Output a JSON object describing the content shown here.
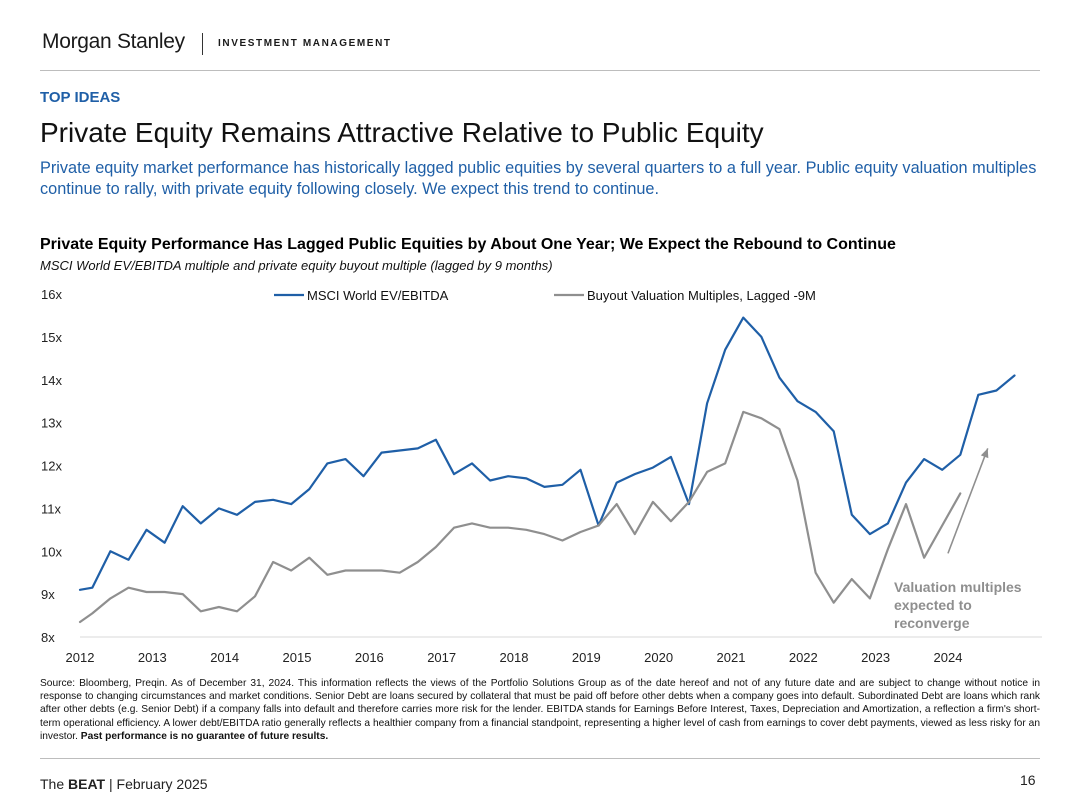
{
  "header": {
    "logo": "Morgan Stanley",
    "division": "INVESTMENT MANAGEMENT"
  },
  "section_label": "TOP IDEAS",
  "page_title": "Private Equity Remains Attractive Relative to Public Equity",
  "subtitle": "Private equity market performance has historically lagged public equities by several quarters to a full year. Public equity valuation multiples continue to rally, with private equity following closely. We expect this trend to continue.",
  "chart_data": {
    "type": "line",
    "title": "Private Equity Performance Has Lagged Public Equities by About One Year; We Expect the Rebound to Continue",
    "subtitle": "MSCI World EV/EBITDA multiple and private equity buyout multiple (lagged by 9 months)",
    "xlim": [
      2012,
      2025.3
    ],
    "ylim": [
      8,
      16
    ],
    "x_ticks": [
      2012,
      2013,
      2014,
      2015,
      2016,
      2017,
      2018,
      2019,
      2020,
      2021,
      2022,
      2023,
      2024
    ],
    "x_tick_labels": [
      "2012",
      "2013",
      "2014",
      "2015",
      "2016",
      "2017",
      "2018",
      "2019",
      "2020",
      "2021",
      "2022",
      "2023",
      "2024"
    ],
    "y_ticks": [
      8,
      9,
      10,
      11,
      12,
      13,
      14,
      15,
      16
    ],
    "y_tick_labels": [
      "8x",
      "9x",
      "10x",
      "11x",
      "12x",
      "13x",
      "14x",
      "15x",
      "16x"
    ],
    "grid": false,
    "legend_position": "top",
    "series": [
      {
        "name": "MSCI World EV/EBITDA",
        "color": "#1f5fa7",
        "x": [
          2012,
          2012.17,
          2012.42,
          2012.67,
          2012.92,
          2013.17,
          2013.42,
          2013.67,
          2013.92,
          2014.17,
          2014.42,
          2014.67,
          2014.92,
          2015.17,
          2015.42,
          2015.67,
          2015.92,
          2016.17,
          2016.42,
          2016.67,
          2016.92,
          2017.17,
          2017.42,
          2017.67,
          2017.92,
          2018.17,
          2018.42,
          2018.67,
          2018.92,
          2019.17,
          2019.42,
          2019.67,
          2019.92,
          2020.17,
          2020.42,
          2020.67,
          2020.92,
          2021.17,
          2021.42,
          2021.67,
          2021.92,
          2022.17,
          2022.42,
          2022.67,
          2022.92,
          2023.17,
          2023.42,
          2023.67,
          2023.92,
          2024.17,
          2024.42,
          2024.67,
          2024.92
        ],
        "values": [
          9.1,
          9.15,
          10.0,
          9.8,
          10.5,
          10.2,
          11.05,
          10.65,
          11.0,
          10.85,
          11.15,
          11.2,
          11.1,
          11.45,
          12.05,
          12.15,
          11.75,
          12.3,
          12.35,
          12.4,
          12.6,
          11.8,
          12.05,
          11.65,
          11.75,
          11.7,
          11.5,
          11.55,
          11.9,
          10.6,
          11.6,
          11.8,
          11.95,
          12.2,
          11.1,
          13.45,
          14.7,
          15.45,
          15.0,
          14.05,
          13.5,
          13.25,
          12.8,
          10.85,
          10.4,
          10.65,
          11.6,
          12.15,
          11.9,
          12.25,
          13.65,
          13.75,
          14.1
        ]
      },
      {
        "name": "Buyout Valuation Multiples, Lagged -9M",
        "color": "#8f8f8f",
        "x": [
          2012,
          2012.17,
          2012.42,
          2012.67,
          2012.92,
          2013.17,
          2013.42,
          2013.67,
          2013.92,
          2014.17,
          2014.42,
          2014.67,
          2014.92,
          2015.17,
          2015.42,
          2015.67,
          2015.92,
          2016.17,
          2016.42,
          2016.67,
          2016.92,
          2017.17,
          2017.42,
          2017.67,
          2017.92,
          2018.17,
          2018.42,
          2018.67,
          2018.92,
          2019.17,
          2019.42,
          2019.67,
          2019.92,
          2020.17,
          2020.42,
          2020.67,
          2020.92,
          2021.17,
          2021.42,
          2021.67,
          2021.92,
          2022.17,
          2022.42,
          2022.67,
          2022.92,
          2023.17,
          2023.42,
          2023.67,
          2023.92,
          2024.17
        ],
        "values": [
          8.35,
          8.55,
          8.9,
          9.15,
          9.05,
          9.05,
          9.0,
          8.6,
          8.7,
          8.6,
          8.95,
          9.75,
          9.55,
          9.85,
          9.45,
          9.55,
          9.55,
          9.55,
          9.5,
          9.75,
          10.1,
          10.55,
          10.65,
          10.55,
          10.55,
          10.5,
          10.4,
          10.25,
          10.45,
          10.6,
          11.1,
          10.4,
          11.15,
          10.7,
          11.15,
          11.85,
          12.05,
          13.25,
          13.1,
          12.85,
          11.65,
          9.5,
          8.8,
          9.35,
          8.9,
          10.05,
          11.1,
          9.85,
          10.6,
          11.35
        ]
      }
    ],
    "annotation": {
      "text_lines": [
        "Valuation multiples",
        "expected to",
        "reconverge"
      ],
      "color": "#8f8f8f",
      "arrow_from": [
        2024.0,
        9.95
      ],
      "arrow_to": [
        2024.55,
        12.4
      ]
    }
  },
  "source": {
    "text": "Source: Bloomberg, Preqin. As of December 31, 2024. This information reflects the views of the Portfolio Solutions Group as of the date hereof and not of any future date and are subject to change without notice in response to changing circumstances and market conditions. Senior Debt are loans secured by collateral that must be paid off before other debts when a company goes into default. Subordinated Debt are loans which rank after other debts (e.g. Senior Debt) if a company falls into default and therefore carries more risk for the lender. EBITDA stands for Earnings Before Interest, Taxes, Depreciation and Amortization, a reflection a firm's short-term operational efficiency. A lower debt/EBITDA ratio generally reflects a healthier company from a financial standpoint, representing a higher level of cash from earnings to cover debt payments, viewed as less risky for an investor.",
    "emphasis": "Past performance is no guarantee of future results."
  },
  "footer": {
    "prefix": "The",
    "brand": "BEAT",
    "suffix": "| February 2025",
    "page_number": "16"
  }
}
